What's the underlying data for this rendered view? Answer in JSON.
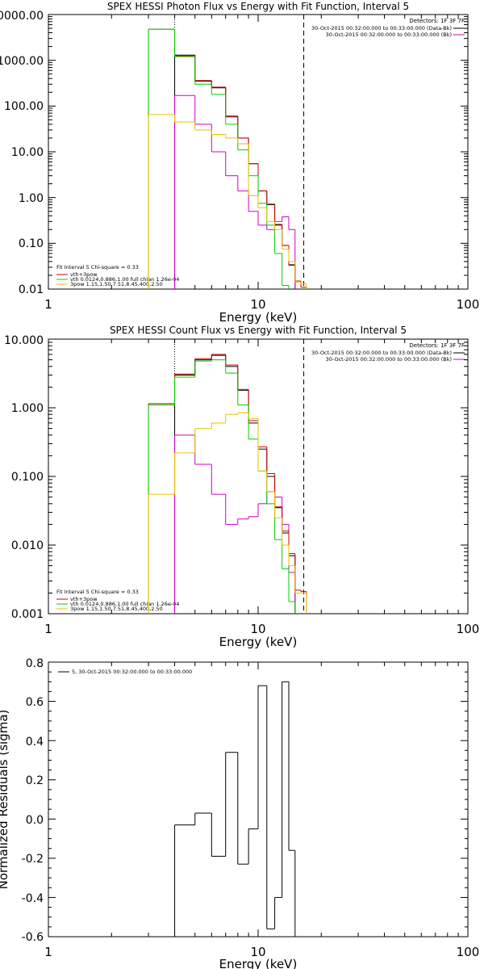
{
  "chart_data": [
    {
      "type": "line",
      "title": "SPEX HESSI Photon Flux vs Energy with Fit Function, Interval 5",
      "xlabel": "Energy (keV)",
      "ylabel": "",
      "xscale": "log",
      "yscale": "log",
      "xlim": [
        1,
        100
      ],
      "ylim": [
        0.01,
        10000
      ],
      "x_ticks": [
        "1",
        "10",
        "100"
      ],
      "y_ticks": [
        "0.01",
        "0.10",
        "1.00",
        "10.00",
        "100.00",
        "1000.00",
        "10000.00"
      ],
      "legend_top_right": {
        "detectors": "Detectors: 1F 3F 7F",
        "lines": [
          {
            "text": "30-Oct-2015 00:32:00.000 to 00:33:00.000 (Data-Bk)",
            "color": "#000000"
          },
          {
            "text": "30-Oct-2015 00:32:00.000 to 00:33:00.000 (Bk)",
            "color": "#cc00cc"
          }
        ]
      },
      "legend_bottom_left": {
        "header": "Fit Interval 5   Chi-square = 0.33",
        "lines": [
          {
            "text": "vth+3pow",
            "color": "#cc0000"
          },
          {
            "text": "vth 0.0124,0.886,1.00  full chian 1.26e-04",
            "color": "#00cc00"
          },
          {
            "text": "3pow 1.15,1.50,7.51,8.45,400,2.50",
            "color": "#e6c200"
          }
        ]
      },
      "vlines": [
        {
          "x": 4.0,
          "style": "dotted",
          "color": "#000000"
        },
        {
          "x": 16.5,
          "style": "dashed",
          "color": "#000000"
        }
      ],
      "edges": [
        3,
        4,
        5,
        6,
        7,
        8,
        9,
        10,
        11,
        12,
        13,
        14,
        15,
        16,
        17,
        18
      ],
      "series": [
        {
          "name": "Data-Bk",
          "color": "#000000",
          "values": [
            null,
            1300,
            350,
            250,
            60,
            20,
            5.5,
            1.4,
            0.7,
            0.25,
            0.09,
            0.034,
            null,
            null,
            null
          ]
        },
        {
          "name": "Bk",
          "color": "#cc00cc",
          "values": [
            null,
            170,
            40,
            10,
            3,
            1.4,
            0.5,
            0.25,
            0.2,
            0.3,
            0.38,
            0.2,
            null,
            null,
            null
          ]
        },
        {
          "name": "vth+3pow",
          "color": "#cc0000",
          "values": [
            4800,
            1250,
            360,
            260,
            58,
            20,
            5.5,
            1.4,
            0.72,
            0.26,
            0.09,
            0.033,
            0.015,
            0.011,
            null
          ]
        },
        {
          "name": "vth",
          "color": "#00cc00",
          "values": [
            4800,
            1200,
            300,
            180,
            40,
            11,
            3,
            0.75,
            0.25,
            0.06,
            0.012,
            null,
            null,
            null,
            null
          ]
        },
        {
          "name": "3pow",
          "color": "#e6c200",
          "values": [
            65,
            45,
            30,
            24,
            20,
            15,
            1.1,
            0.6,
            0.3,
            0.2,
            0.075,
            0.04,
            0.014,
            0.013,
            null
          ]
        }
      ]
    },
    {
      "type": "line",
      "title": "SPEX HESSI Count Flux vs Energy with Fit Function, Interval 5",
      "xlabel": "Energy (keV)",
      "ylabel": "",
      "xscale": "log",
      "yscale": "log",
      "xlim": [
        1,
        100
      ],
      "ylim": [
        0.001,
        10
      ],
      "x_ticks": [
        "1",
        "10",
        "100"
      ],
      "y_ticks": [
        "0.001",
        "0.010",
        "0.100",
        "1.000",
        "10.000"
      ],
      "legend_top_right": {
        "detectors": "Detectors: 1F 3F 7F",
        "lines": [
          {
            "text": "30-Oct-2015 00:32:00.000 to 00:33:00.000 (Data-Bk)",
            "color": "#000000"
          },
          {
            "text": "30-Oct-2015 00:32:00.000 to 00:33:00.000 (Bk)",
            "color": "#cc00cc"
          }
        ]
      },
      "legend_bottom_left": {
        "header": "Fit Interval 5   Chi-square = 0.33",
        "lines": [
          {
            "text": "vth+3pow",
            "color": "#cc0000"
          },
          {
            "text": "vth 0.0124,0.886,1.00  full chian 1.26e-04",
            "color": "#00cc00"
          },
          {
            "text": "3pow 1.15,1.50,7.51,8.45,400,2.50",
            "color": "#e6c200"
          }
        ]
      },
      "vlines": [
        {
          "x": 4.0,
          "style": "dotted",
          "color": "#000000"
        },
        {
          "x": 16.5,
          "style": "dashed",
          "color": "#000000"
        }
      ],
      "edges": [
        3,
        4,
        5,
        6,
        7,
        8,
        9,
        10,
        11,
        12,
        13,
        14,
        15,
        16,
        17,
        18
      ],
      "series": [
        {
          "name": "Data-Bk",
          "color": "#000000",
          "values": [
            null,
            3.0,
            5.0,
            5.8,
            4.0,
            1.8,
            0.6,
            0.25,
            0.1,
            0.035,
            0.015,
            0.007,
            null,
            null,
            null
          ]
        },
        {
          "name": "Bk",
          "color": "#cc00cc",
          "values": [
            null,
            0.4,
            0.15,
            0.055,
            0.02,
            0.024,
            0.026,
            0.04,
            0.06,
            0.05,
            0.02,
            0.004,
            null,
            null,
            null
          ]
        },
        {
          "name": "vth+3pow",
          "color": "#cc0000",
          "values": [
            1.15,
            3.1,
            5.2,
            6.0,
            4.2,
            1.85,
            0.65,
            0.27,
            0.11,
            0.036,
            0.016,
            0.0075,
            0.0022,
            0.0021,
            null
          ]
        },
        {
          "name": "vth",
          "color": "#00cc00",
          "values": [
            1.1,
            2.8,
            4.8,
            5.0,
            3.2,
            1.1,
            0.35,
            0.12,
            0.04,
            0.012,
            0.0045,
            0.0015,
            null,
            null,
            null
          ]
        },
        {
          "name": "3pow",
          "color": "#e6c200",
          "values": [
            0.055,
            0.22,
            0.5,
            0.6,
            0.8,
            0.85,
            0.7,
            0.12,
            0.06,
            0.025,
            0.01,
            0.005,
            0.002,
            0.002,
            null
          ]
        }
      ]
    },
    {
      "type": "line",
      "title": "",
      "xlabel": "Energy (keV)",
      "ylabel": "Normalized Residuals (sigma)",
      "xscale": "log",
      "yscale": "linear",
      "xlim": [
        1,
        100
      ],
      "ylim": [
        -0.6,
        0.8
      ],
      "x_ticks": [
        "1",
        "10",
        "100"
      ],
      "y_ticks": [
        "-0.6",
        "-0.4",
        "-0.2",
        "0.0",
        "0.2",
        "0.4",
        "0.6",
        "0.8"
      ],
      "legend_top_left": {
        "lines": [
          {
            "text": "5, 30-Oct-2015 00:32:00.000 to 00:33:00.000",
            "color": "#000000"
          }
        ]
      },
      "edges": [
        4,
        5,
        6,
        7,
        8,
        9,
        10,
        11,
        12,
        13,
        14,
        15,
        16,
        17
      ],
      "series": [
        {
          "name": "5",
          "color": "#000000",
          "values": [
            -0.03,
            0.03,
            -0.19,
            0.34,
            -0.23,
            -0.05,
            0.68,
            -0.56,
            -0.4,
            0.7,
            -0.16,
            null,
            null
          ]
        }
      ]
    }
  ]
}
